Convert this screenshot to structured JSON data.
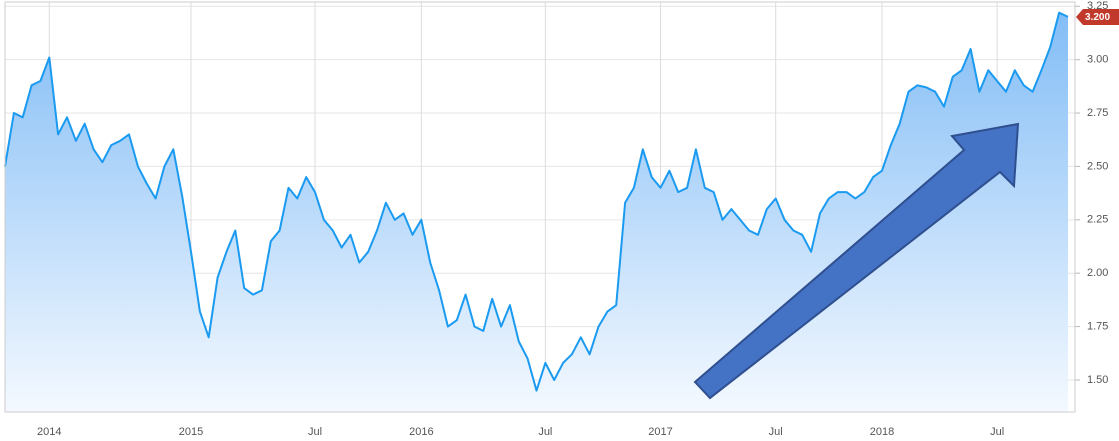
{
  "chart_data": {
    "type": "area",
    "categories": [
      null,
      null,
      null,
      null,
      null,
      "2014",
      null,
      null,
      null,
      null,
      null,
      null,
      null,
      null,
      null,
      null,
      null,
      null,
      null,
      null,
      null,
      "2015",
      null,
      null,
      null,
      null,
      null,
      null,
      null,
      null,
      null,
      null,
      null,
      null,
      null,
      "Jul",
      null,
      null,
      null,
      null,
      null,
      null,
      null,
      null,
      null,
      null,
      null,
      "2016",
      null,
      null,
      null,
      null,
      null,
      null,
      null,
      null,
      null,
      null,
      null,
      null,
      null,
      "Jul",
      null,
      null,
      null,
      null,
      null,
      null,
      null,
      null,
      null,
      null,
      null,
      null,
      "2017",
      null,
      null,
      null,
      null,
      null,
      null,
      null,
      null,
      null,
      null,
      null,
      null,
      "Jul",
      null,
      null,
      null,
      null,
      null,
      null,
      null,
      null,
      null,
      null,
      null,
      "2018",
      null,
      null,
      null,
      null,
      null,
      null,
      null,
      null,
      null,
      null,
      null,
      null,
      "Jul",
      null,
      null,
      null,
      null,
      null,
      null,
      null,
      null
    ],
    "series": [
      {
        "color": "#1a9af0",
        "values": [
          2.5,
          2.75,
          2.73,
          2.88,
          2.9,
          3.01,
          2.65,
          2.73,
          2.62,
          2.7,
          2.58,
          2.52,
          2.6,
          2.62,
          2.65,
          2.5,
          2.42,
          2.35,
          2.5,
          2.58,
          2.36,
          2.1,
          1.82,
          1.7,
          1.98,
          2.1,
          2.2,
          1.93,
          1.9,
          1.92,
          2.15,
          2.2,
          2.4,
          2.35,
          2.45,
          2.38,
          2.25,
          2.2,
          2.12,
          2.18,
          2.05,
          2.1,
          2.2,
          2.33,
          2.25,
          2.28,
          2.18,
          2.25,
          2.05,
          1.92,
          1.75,
          1.78,
          1.9,
          1.75,
          1.73,
          1.88,
          1.75,
          1.85,
          1.68,
          1.6,
          1.45,
          1.58,
          1.5,
          1.58,
          1.62,
          1.7,
          1.62,
          1.75,
          1.82,
          1.85,
          2.33,
          2.4,
          2.58,
          2.45,
          2.4,
          2.48,
          2.38,
          2.4,
          2.58,
          2.4,
          2.38,
          2.25,
          2.3,
          2.25,
          2.2,
          2.18,
          2.3,
          2.35,
          2.25,
          2.2,
          2.18,
          2.1,
          2.28,
          2.35,
          2.38,
          2.38,
          2.35,
          2.38,
          2.45,
          2.48,
          2.6,
          2.7,
          2.85,
          2.88,
          2.87,
          2.85,
          2.78,
          2.92,
          2.95,
          3.05,
          2.85,
          2.95,
          2.9,
          2.85,
          2.95,
          2.88,
          2.85,
          2.95,
          3.06,
          3.22,
          3.2
        ],
        "value_labels": [
          null,
          null,
          null,
          null,
          null,
          null,
          null,
          null,
          null,
          null,
          null,
          null,
          null,
          null,
          null,
          null,
          null,
          null,
          null,
          null,
          null,
          null,
          null,
          null,
          null,
          null,
          null,
          null,
          null,
          null,
          null,
          null,
          null,
          null,
          null,
          null,
          null,
          null,
          null,
          null,
          null,
          null,
          null,
          null,
          null,
          null,
          null,
          null,
          null,
          null,
          null,
          null,
          null,
          null,
          null,
          null,
          null,
          null,
          null,
          null,
          null,
          null,
          null,
          null,
          null,
          null,
          null,
          null,
          null,
          null,
          null,
          null,
          null,
          null,
          null,
          null,
          null,
          null,
          null,
          null,
          null,
          null,
          null,
          null,
          null,
          null,
          null,
          null,
          null,
          null,
          null,
          null,
          null,
          null,
          null,
          null,
          null,
          null,
          null,
          null,
          null,
          null,
          null,
          null,
          null,
          null,
          null,
          null,
          null,
          null,
          null,
          null,
          null,
          null,
          null,
          null,
          null,
          null,
          null,
          null,
          "3.200"
        ]
      }
    ],
    "ylim": [
      1.35,
      3.27
    ],
    "yticks": [
      {
        "value": 1.5,
        "label": "1.50"
      },
      {
        "value": 1.75,
        "label": "1.75"
      },
      {
        "value": 2.0,
        "label": "2.00"
      },
      {
        "value": 2.25,
        "label": "2.25"
      },
      {
        "value": 2.5,
        "label": "2.50"
      },
      {
        "value": 2.75,
        "label": "2.75"
      },
      {
        "value": 3.0,
        "label": "3.00"
      },
      {
        "value": 3.25,
        "label": "3.25"
      }
    ],
    "grid": true,
    "tag_color": "#c0392b"
  }
}
